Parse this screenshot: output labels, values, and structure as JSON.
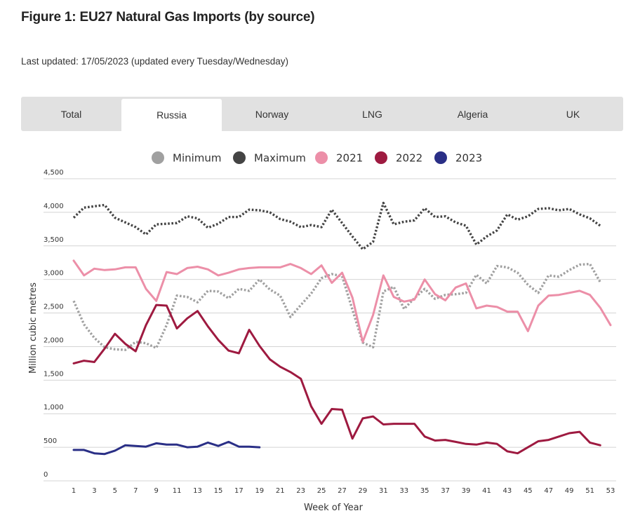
{
  "header": {
    "title": "Figure 1: EU27 Natural Gas Imports (by source)",
    "updated": "Last updated: 17/05/2023 (updated every Tuesday/Wednesday)"
  },
  "tabs": [
    {
      "label": "Total",
      "active": false
    },
    {
      "label": "Russia",
      "active": true
    },
    {
      "label": "Norway",
      "active": false
    },
    {
      "label": "LNG",
      "active": false
    },
    {
      "label": "Algeria",
      "active": false
    },
    {
      "label": "UK",
      "active": false
    }
  ],
  "chart_data": {
    "type": "line",
    "title": "",
    "xlabel": "Week of Year",
    "ylabel": "Million cubic metres",
    "xlim": [
      1,
      53
    ],
    "ylim": [
      0,
      4500
    ],
    "x_ticks": [
      1,
      3,
      5,
      7,
      9,
      11,
      13,
      15,
      17,
      19,
      21,
      23,
      25,
      27,
      29,
      31,
      33,
      35,
      37,
      39,
      41,
      43,
      45,
      47,
      49,
      51,
      53
    ],
    "y_ticks": [
      0,
      500,
      1000,
      1500,
      2000,
      2500,
      3000,
      3500,
      4000,
      4500
    ],
    "y_tick_labels": [
      "0",
      "500",
      "1,000",
      "1,500",
      "2,000",
      "2,500",
      "3,000",
      "3,500",
      "4,000",
      "4,500"
    ],
    "grid": true,
    "legend_position": "top-center",
    "series": [
      {
        "name": "Minimum",
        "color": "#a0a0a0",
        "style": "dotted",
        "x": [
          1,
          2,
          3,
          4,
          5,
          6,
          7,
          8,
          9,
          10,
          11,
          12,
          13,
          14,
          15,
          16,
          17,
          18,
          19,
          20,
          21,
          22,
          23,
          24,
          25,
          26,
          27,
          28,
          29,
          30,
          31,
          32,
          33,
          34,
          35,
          36,
          37,
          38,
          39,
          40,
          41,
          42,
          43,
          44,
          45,
          46,
          47,
          48,
          49,
          50,
          51,
          52
        ],
        "values": [
          2680,
          2330,
          2130,
          1990,
          1960,
          1950,
          2070,
          2050,
          1980,
          2320,
          2760,
          2740,
          2660,
          2830,
          2820,
          2720,
          2860,
          2830,
          3000,
          2850,
          2760,
          2440,
          2620,
          2790,
          3020,
          3080,
          3050,
          2550,
          2060,
          1990,
          2820,
          2890,
          2560,
          2720,
          2860,
          2710,
          2770,
          2780,
          2800,
          3070,
          2940,
          3200,
          3180,
          3100,
          2920,
          2800,
          3060,
          3040,
          3140,
          3220,
          3230,
          2960
        ]
      },
      {
        "name": "Maximum",
        "color": "#444444",
        "style": "dotted",
        "x": [
          1,
          2,
          3,
          4,
          5,
          6,
          7,
          8,
          9,
          10,
          11,
          12,
          13,
          14,
          15,
          16,
          17,
          18,
          19,
          20,
          21,
          22,
          23,
          24,
          25,
          26,
          27,
          28,
          29,
          30,
          31,
          32,
          33,
          34,
          35,
          36,
          37,
          38,
          39,
          40,
          41,
          42,
          43,
          44,
          45,
          46,
          47,
          48,
          49,
          50,
          51,
          52
        ],
        "values": [
          3920,
          4070,
          4090,
          4110,
          3920,
          3850,
          3780,
          3670,
          3820,
          3830,
          3840,
          3940,
          3910,
          3770,
          3830,
          3930,
          3930,
          4040,
          4030,
          4000,
          3900,
          3860,
          3780,
          3810,
          3780,
          4040,
          3840,
          3640,
          3450,
          3560,
          4140,
          3820,
          3860,
          3880,
          4060,
          3930,
          3940,
          3850,
          3800,
          3520,
          3640,
          3730,
          3970,
          3890,
          3940,
          4050,
          4060,
          4030,
          4050,
          3970,
          3910,
          3800
        ]
      },
      {
        "name": "2021",
        "color": "#ec8fa8",
        "style": "solid",
        "x": [
          1,
          2,
          3,
          4,
          5,
          6,
          7,
          8,
          9,
          10,
          11,
          12,
          13,
          14,
          15,
          16,
          17,
          18,
          19,
          20,
          21,
          22,
          23,
          24,
          25,
          26,
          27,
          28,
          29,
          30,
          31,
          32,
          33,
          34,
          35,
          36,
          37,
          38,
          39,
          40,
          41,
          42,
          43,
          44,
          45,
          46,
          47,
          48,
          49,
          50,
          51,
          52,
          53
        ],
        "values": [
          3280,
          3060,
          3160,
          3140,
          3150,
          3180,
          3180,
          2860,
          2680,
          3110,
          3080,
          3170,
          3190,
          3150,
          3060,
          3100,
          3150,
          3170,
          3180,
          3180,
          3180,
          3230,
          3170,
          3080,
          3210,
          2950,
          3100,
          2730,
          2070,
          2470,
          3060,
          2740,
          2670,
          2700,
          3000,
          2780,
          2690,
          2880,
          2940,
          2570,
          2610,
          2590,
          2520,
          2520,
          2230,
          2610,
          2760,
          2770,
          2800,
          2830,
          2770,
          2580,
          2320
        ]
      },
      {
        "name": "2022",
        "color": "#9e1a40",
        "style": "solid",
        "x": [
          1,
          2,
          3,
          4,
          5,
          6,
          7,
          8,
          9,
          10,
          11,
          12,
          13,
          14,
          15,
          16,
          17,
          18,
          19,
          20,
          21,
          22,
          23,
          24,
          25,
          26,
          27,
          28,
          29,
          30,
          31,
          32,
          33,
          34,
          35,
          36,
          37,
          38,
          39,
          40,
          41,
          42,
          43,
          44,
          45,
          46,
          47,
          48,
          49,
          50,
          51,
          52
        ],
        "values": [
          1750,
          1790,
          1770,
          1970,
          2190,
          2040,
          1930,
          2320,
          2620,
          2610,
          2270,
          2420,
          2530,
          2300,
          2100,
          1940,
          1900,
          2250,
          2010,
          1810,
          1700,
          1620,
          1520,
          1110,
          850,
          1070,
          1060,
          630,
          930,
          960,
          840,
          850,
          850,
          850,
          660,
          600,
          610,
          580,
          550,
          540,
          570,
          550,
          440,
          410,
          500,
          590,
          610,
          660,
          710,
          730,
          570,
          530
        ]
      },
      {
        "name": "2023",
        "color": "#2a2f86",
        "style": "solid",
        "x": [
          1,
          2,
          3,
          4,
          5,
          6,
          7,
          8,
          9,
          10,
          11,
          12,
          13,
          14,
          15,
          16,
          17,
          18,
          19
        ],
        "values": [
          460,
          460,
          410,
          400,
          450,
          530,
          520,
          510,
          560,
          540,
          540,
          500,
          510,
          570,
          520,
          580,
          510,
          510,
          500
        ]
      }
    ]
  },
  "legend_marker_colors": [
    "#a0a0a0",
    "#444444",
    "#ec8fa8",
    "#9e1a40",
    "#2a2f86"
  ]
}
